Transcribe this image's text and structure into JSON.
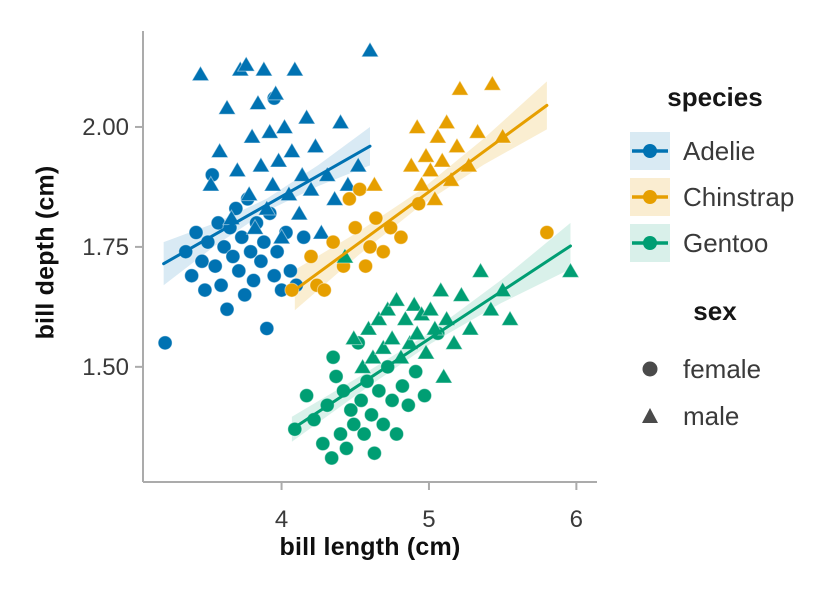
{
  "figure": {
    "background": "#ffffff"
  },
  "axes": {
    "x": {
      "label": "bill length (cm)",
      "tick_labels": [
        "4",
        "5",
        "6"
      ],
      "tick_values": [
        4,
        5,
        6
      ]
    },
    "y": {
      "label": "bill depth (cm)",
      "tick_labels": [
        "1.50",
        "1.75",
        "2.00"
      ],
      "tick_values": [
        1.5,
        1.75,
        2.0
      ]
    },
    "axis_color": "#ababab",
    "tick_label_color": "#3a3a3a",
    "title_color": "#0f0f0f"
  },
  "legend": {
    "species_title": "species",
    "sex_title": "sex",
    "species": [
      {
        "label": "Adelie",
        "color": "#0072B2",
        "tint": "#D9EAF3"
      },
      {
        "label": "Chinstrap",
        "color": "#E69F00",
        "tint": "#FAEDD1"
      },
      {
        "label": "Gentoo",
        "color": "#009E73",
        "tint": "#D9F0EA"
      }
    ],
    "sex": [
      {
        "label": "female",
        "marker": "circle"
      },
      {
        "label": "male",
        "marker": "triangle"
      }
    ],
    "sex_marker_color": "#4a4a4a",
    "label_color": "#3a3a3a"
  },
  "chart_data": {
    "type": "scatter",
    "title": "",
    "xlabel": "bill length (cm)",
    "ylabel": "bill depth (cm)",
    "xlim": [
      3.06,
      6.14
    ],
    "ylim": [
      1.26,
      2.2
    ],
    "x_ticks": [
      4,
      5,
      6
    ],
    "y_ticks": [
      1.5,
      1.75,
      2.0
    ],
    "grid": false,
    "legend_position": "right",
    "series": [
      {
        "name": "Adelie female",
        "species": "Adelie",
        "sex": "female",
        "marker": "circle",
        "color": "#0072B2",
        "points": [
          [
            3.21,
            1.55
          ],
          [
            3.35,
            1.74
          ],
          [
            3.39,
            1.69
          ],
          [
            3.42,
            1.78
          ],
          [
            3.46,
            1.72
          ],
          [
            3.48,
            1.66
          ],
          [
            3.5,
            1.76
          ],
          [
            3.53,
            1.9
          ],
          [
            3.55,
            1.71
          ],
          [
            3.57,
            1.8
          ],
          [
            3.59,
            1.67
          ],
          [
            3.61,
            1.75
          ],
          [
            3.63,
            1.62
          ],
          [
            3.65,
            1.79
          ],
          [
            3.67,
            1.73
          ],
          [
            3.69,
            1.83
          ],
          [
            3.71,
            1.7
          ],
          [
            3.73,
            1.77
          ],
          [
            3.75,
            1.65
          ],
          [
            3.77,
            1.85
          ],
          [
            3.79,
            1.74
          ],
          [
            3.81,
            1.68
          ],
          [
            3.83,
            1.8
          ],
          [
            3.86,
            1.72
          ],
          [
            3.88,
            1.76
          ],
          [
            3.9,
            1.58
          ],
          [
            3.92,
            1.82
          ],
          [
            3.95,
            1.69
          ],
          [
            3.95,
            2.06
          ],
          [
            3.97,
            1.74
          ],
          [
            4.0,
            1.66
          ],
          [
            4.03,
            1.78
          ],
          [
            4.06,
            1.7
          ],
          [
            4.1,
            1.67
          ],
          [
            4.15,
            1.77
          ]
        ]
      },
      {
        "name": "Adelie male",
        "species": "Adelie",
        "sex": "male",
        "marker": "triangle",
        "color": "#0072B2",
        "points": [
          [
            3.45,
            2.11
          ],
          [
            3.52,
            1.88
          ],
          [
            3.58,
            1.95
          ],
          [
            3.63,
            2.04
          ],
          [
            3.66,
            1.81
          ],
          [
            3.7,
            1.91
          ],
          [
            3.72,
            2.12
          ],
          [
            3.76,
            2.13
          ],
          [
            3.78,
            1.86
          ],
          [
            3.8,
            1.98
          ],
          [
            3.82,
            1.79
          ],
          [
            3.84,
            2.05
          ],
          [
            3.86,
            1.92
          ],
          [
            3.88,
            2.12
          ],
          [
            3.9,
            1.83
          ],
          [
            3.92,
            1.99
          ],
          [
            3.94,
            1.88
          ],
          [
            3.96,
            2.07
          ],
          [
            3.98,
            1.93
          ],
          [
            4.0,
            1.77
          ],
          [
            4.02,
            2.0
          ],
          [
            4.05,
            1.86
          ],
          [
            4.07,
            1.95
          ],
          [
            4.09,
            2.12
          ],
          [
            4.12,
            1.82
          ],
          [
            4.14,
            1.9
          ],
          [
            4.17,
            2.02
          ],
          [
            4.2,
            1.87
          ],
          [
            4.23,
            1.96
          ],
          [
            4.27,
            1.78
          ],
          [
            4.31,
            1.9
          ],
          [
            4.36,
            1.85
          ],
          [
            4.4,
            2.01
          ],
          [
            4.45,
            1.88
          ],
          [
            4.52,
            1.92
          ],
          [
            4.6,
            2.16
          ]
        ]
      },
      {
        "name": "Chinstrap female",
        "species": "Chinstrap",
        "sex": "female",
        "marker": "circle",
        "color": "#E69F00",
        "points": [
          [
            4.07,
            1.66
          ],
          [
            4.2,
            1.73
          ],
          [
            4.24,
            1.67
          ],
          [
            4.29,
            1.66
          ],
          [
            4.35,
            1.76
          ],
          [
            4.42,
            1.71
          ],
          [
            4.46,
            1.85
          ],
          [
            4.5,
            1.79
          ],
          [
            4.53,
            1.87
          ],
          [
            4.57,
            1.71
          ],
          [
            4.6,
            1.75
          ],
          [
            4.64,
            1.81
          ],
          [
            4.69,
            1.74
          ],
          [
            4.74,
            1.79
          ],
          [
            4.81,
            1.77
          ],
          [
            4.93,
            1.84
          ],
          [
            5.8,
            1.78
          ]
        ]
      },
      {
        "name": "Chinstrap male",
        "species": "Chinstrap",
        "sex": "male",
        "marker": "triangle",
        "color": "#E69F00",
        "points": [
          [
            4.63,
            1.88
          ],
          [
            4.88,
            1.92
          ],
          [
            4.92,
            2.0
          ],
          [
            4.95,
            1.88
          ],
          [
            4.98,
            1.94
          ],
          [
            5.01,
            1.91
          ],
          [
            5.04,
            1.85
          ],
          [
            5.06,
            1.98
          ],
          [
            5.09,
            1.93
          ],
          [
            5.12,
            2.01
          ],
          [
            5.15,
            1.89
          ],
          [
            5.19,
            1.96
          ],
          [
            5.21,
            2.08
          ],
          [
            5.27,
            1.92
          ],
          [
            5.33,
            1.99
          ],
          [
            5.43,
            2.09
          ],
          [
            5.5,
            1.98
          ]
        ]
      },
      {
        "name": "Gentoo female",
        "species": "Gentoo",
        "sex": "female",
        "marker": "circle",
        "color": "#009E73",
        "points": [
          [
            4.09,
            1.37
          ],
          [
            4.17,
            1.44
          ],
          [
            4.22,
            1.39
          ],
          [
            4.28,
            1.34
          ],
          [
            4.31,
            1.42
          ],
          [
            4.34,
            1.31
          ],
          [
            4.37,
            1.48
          ],
          [
            4.4,
            1.36
          ],
          [
            4.42,
            1.45
          ],
          [
            4.44,
            1.33
          ],
          [
            4.35,
            1.52
          ],
          [
            4.47,
            1.41
          ],
          [
            4.49,
            1.38
          ],
          [
            4.52,
            1.55
          ],
          [
            4.54,
            1.43
          ],
          [
            4.56,
            1.36
          ],
          [
            4.58,
            1.47
          ],
          [
            4.61,
            1.4
          ],
          [
            4.63,
            1.32
          ],
          [
            4.66,
            1.45
          ],
          [
            4.69,
            1.38
          ],
          [
            4.72,
            1.5
          ],
          [
            4.75,
            1.43
          ],
          [
            4.78,
            1.36
          ],
          [
            4.82,
            1.46
          ],
          [
            4.86,
            1.42
          ],
          [
            4.91,
            1.49
          ],
          [
            4.97,
            1.44
          ],
          [
            5.06,
            1.57
          ]
        ]
      },
      {
        "name": "Gentoo male",
        "species": "Gentoo",
        "sex": "male",
        "marker": "triangle",
        "color": "#009E73",
        "points": [
          [
            4.43,
            1.73
          ],
          [
            4.49,
            1.56
          ],
          [
            4.55,
            1.5
          ],
          [
            4.59,
            1.58
          ],
          [
            4.62,
            1.52
          ],
          [
            4.66,
            1.6
          ],
          [
            4.69,
            1.54
          ],
          [
            4.72,
            1.62
          ],
          [
            4.75,
            1.56
          ],
          [
            4.78,
            1.64
          ],
          [
            4.81,
            1.52
          ],
          [
            4.84,
            1.6
          ],
          [
            4.87,
            1.55
          ],
          [
            4.9,
            1.63
          ],
          [
            4.92,
            1.57
          ],
          [
            4.95,
            1.61
          ],
          [
            4.98,
            1.53
          ],
          [
            5.01,
            1.62
          ],
          [
            5.04,
            1.58
          ],
          [
            5.08,
            1.66
          ],
          [
            5.1,
            1.48
          ],
          [
            5.12,
            1.6
          ],
          [
            5.17,
            1.55
          ],
          [
            5.22,
            1.65
          ],
          [
            5.28,
            1.58
          ],
          [
            5.35,
            1.7
          ],
          [
            5.42,
            1.62
          ],
          [
            5.5,
            1.66
          ],
          [
            5.55,
            1.6
          ],
          [
            5.96,
            1.7
          ]
        ]
      }
    ],
    "regressions": [
      {
        "species": "Adelie",
        "color": "#0072B2",
        "band_opacity": 0.15,
        "x": [
          3.2,
          4.6
        ],
        "y": [
          1.715,
          1.96
        ],
        "band_halfwidth": [
          0.045,
          0.013,
          0.04
        ]
      },
      {
        "species": "Chinstrap",
        "color": "#E69F00",
        "band_opacity": 0.18,
        "x": [
          4.09,
          5.8
        ],
        "y": [
          1.66,
          2.045
        ],
        "band_halfwidth": [
          0.042,
          0.016,
          0.05
        ]
      },
      {
        "species": "Gentoo",
        "color": "#009E73",
        "band_opacity": 0.15,
        "x": [
          4.07,
          5.96
        ],
        "y": [
          1.37,
          1.752
        ],
        "band_halfwidth": [
          0.026,
          0.012,
          0.048
        ]
      }
    ]
  }
}
